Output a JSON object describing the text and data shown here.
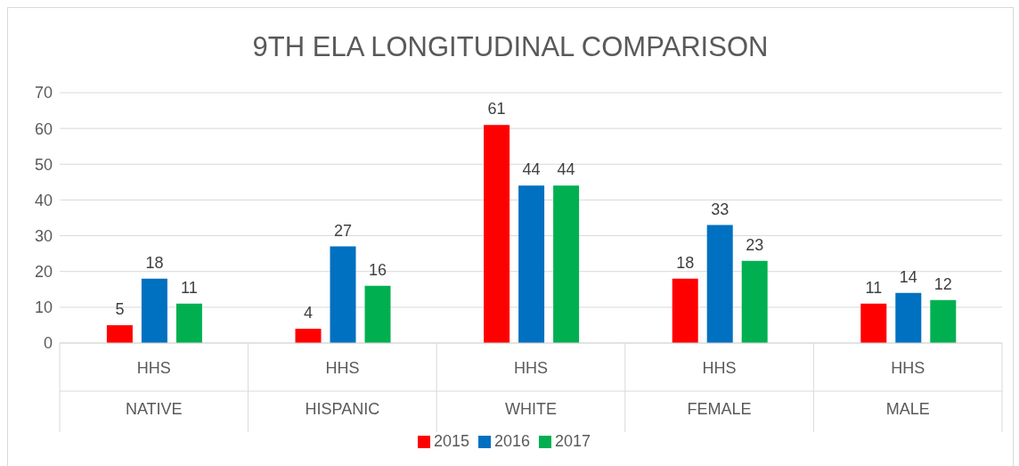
{
  "chart_data": {
    "type": "bar",
    "title": "9TH ELA LONGITUDINAL COMPARISON",
    "categories": [
      "HHS\nNATIVE",
      "HHS\nHISPANIC",
      "HHS\nWHITE",
      "HHS\nFEMALE",
      "HHS\nMALE"
    ],
    "series": [
      {
        "name": "2015",
        "color": "#ff0000",
        "values": [
          5,
          4,
          61,
          18,
          11
        ]
      },
      {
        "name": "2016",
        "color": "#0070c0",
        "values": [
          18,
          27,
          44,
          33,
          14
        ]
      },
      {
        "name": "2017",
        "color": "#00b050",
        "values": [
          11,
          16,
          44,
          23,
          12
        ]
      }
    ],
    "ylim": [
      0,
      70
    ],
    "yticks": [
      0,
      10,
      20,
      30,
      40,
      50,
      60,
      70
    ],
    "grid": "y",
    "legend": "bottom",
    "data_labels": true
  }
}
